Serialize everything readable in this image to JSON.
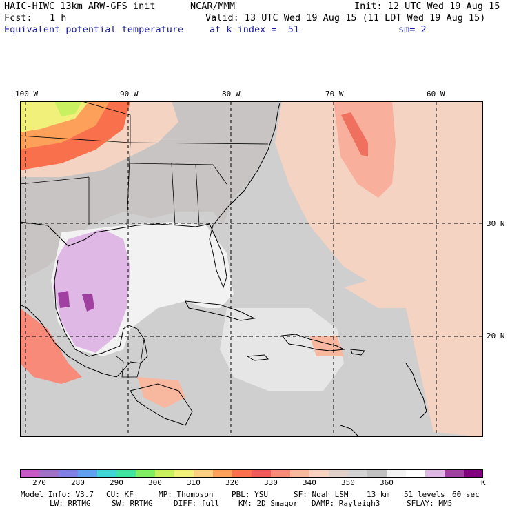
{
  "header": {
    "model_title": "HAIC-HIWC 13km ARW-GFS init",
    "org": "NCAR/MMM",
    "init_label": "Init: 12 UTC Wed 19 Aug 15",
    "fcst_label": "Fcst:",
    "fcst_value": "1 h",
    "valid_label": "Valid: 13 UTC Wed 19 Aug 15 (11 LDT Wed 19 Aug 15)",
    "field_name": "Equivalent potential temperature",
    "level_label": "at k-index =  51",
    "smooth_label": "sm= 2"
  },
  "map": {
    "lon_labels": [
      "100 W",
      "90 W",
      "80 W",
      "70 W",
      "60 W"
    ],
    "lat_labels": [
      "30 N",
      "20 N"
    ]
  },
  "colorbar": {
    "ticks": [
      "270",
      "280",
      "290",
      "300",
      "310",
      "320",
      "330",
      "340",
      "350",
      "360"
    ],
    "unit": "K",
    "colors": [
      "#c85ac8",
      "#a070c8",
      "#8080e6",
      "#60a0f0",
      "#40d6d6",
      "#40e6a0",
      "#80ee60",
      "#c8f060",
      "#f0f07a",
      "#fcd080",
      "#fca05a",
      "#f8704c",
      "#f05a5a",
      "#f88a7a",
      "#f8b8a0",
      "#f8d2c0",
      "#e0d0c8",
      "#d2d2d2",
      "#c0c0c0",
      "#f2f2f2",
      "#ffffff",
      "#e0b8e6",
      "#a040a0",
      "#800080"
    ]
  },
  "footer": {
    "line1": [
      "Model Info: V3.7",
      "CU: KF",
      "MP: Thompson",
      "PBL: YSU",
      "SF: Noah LSM",
      "13 km",
      "51 levels",
      "60 sec"
    ],
    "line2": [
      "LW: RRTMG",
      "SW: RRTMG",
      "DIFF: full",
      "KM: 2D Smagor",
      "DAMP: Rayleigh3",
      "SFLAY: MM5"
    ]
  }
}
